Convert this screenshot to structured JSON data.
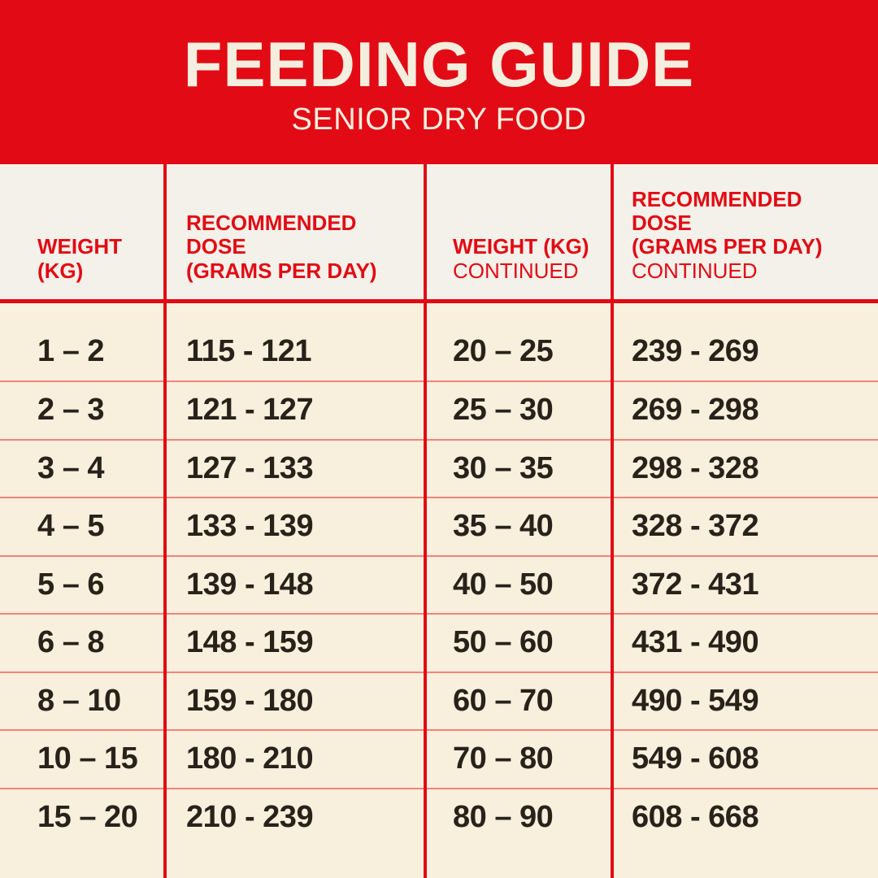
{
  "banner": {
    "title": "FEEDING GUIDE",
    "subtitle": "SENIOR DRY FOOD"
  },
  "table": {
    "header_cells": [
      {
        "title": "WEIGHT\n(KG)",
        "continued": ""
      },
      {
        "title": "RECOMMENDED\nDOSE\n(GRAMS PER DAY)",
        "continued": ""
      },
      {
        "title": "WEIGHT (KG)",
        "continued": "CONTINUED"
      },
      {
        "title": "RECOMMENDED\nDOSE\n(GRAMS PER DAY)",
        "continued": "CONTINUED"
      }
    ]
  },
  "chart_data": {
    "type": "table",
    "title": "FEEDING GUIDE",
    "subtitle": "SENIOR DRY FOOD",
    "columns": [
      "WEIGHT (KG)",
      "RECOMMENDED DOSE (GRAMS PER DAY)",
      "WEIGHT (KG) CONTINUED",
      "RECOMMENDED DOSE (GRAMS PER DAY) CONTINUED"
    ],
    "rows": [
      [
        "1 – 2",
        "115 - 121",
        "20 – 25",
        "239 - 269"
      ],
      [
        "2 – 3",
        "121 - 127",
        "25 – 30",
        "269 - 298"
      ],
      [
        "3 – 4",
        "127 - 133",
        "30 – 35",
        "298 - 328"
      ],
      [
        "4 – 5",
        "133 - 139",
        "35 – 40",
        "328 - 372"
      ],
      [
        "5 – 6",
        "139 - 148",
        "40 – 50",
        "372 - 431"
      ],
      [
        "6 – 8",
        "148 - 159",
        "50 – 60",
        "431 - 490"
      ],
      [
        "8 – 10",
        "159 - 180",
        "60 – 70",
        "490 - 549"
      ],
      [
        "10 – 15",
        "180 - 210",
        "70 – 80",
        "549 - 608"
      ],
      [
        "15 – 20",
        "210 - 239",
        "80 – 90",
        "608 - 668"
      ]
    ]
  },
  "colors": {
    "red": "#E20A14",
    "row_divider": "#F2837B",
    "banner_text": "#F4EEDF",
    "header_row_bg": "#F4F1EA",
    "body_bg": "#F8EFDC",
    "cell_text": "#29221B"
  }
}
